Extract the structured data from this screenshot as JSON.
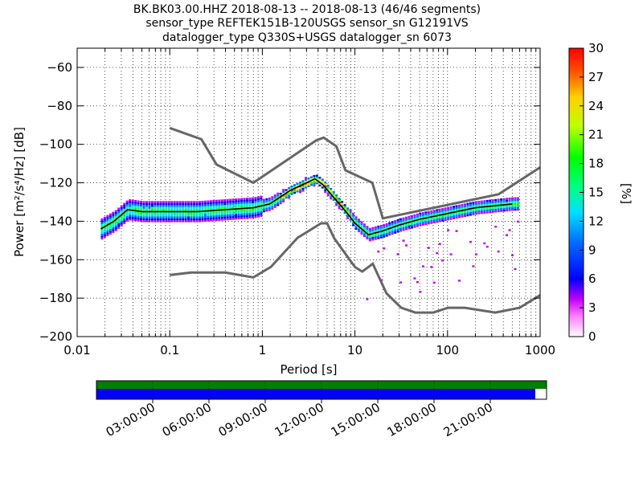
{
  "title": {
    "line1": "BK.BK03.00.HHZ   2018-08-13 -- 2018-08-13  (46/46 segments)",
    "line2": "sensor_type REFTEK151B-120USGS sensor_sn G12191VS",
    "line3": "datalogger_type Q330S+USGS datalogger_sn 6073"
  },
  "chart_data": {
    "type": "heatmap",
    "title": "BK.BK03.00.HHZ   2018-08-13 -- 2018-08-13  (46/46 segments)",
    "xlabel": "Period [s]",
    "ylabel": "Power [m²/s⁴/Hz] [dB]",
    "x_scale": "log",
    "xlim": [
      0.01,
      1000
    ],
    "ylim": [
      -200,
      -50
    ],
    "x_ticks": [
      0.01,
      0.1,
      1,
      10,
      100,
      1000
    ],
    "x_tick_labels": [
      "0.01",
      "0.1",
      "1",
      "10",
      "100",
      "1000"
    ],
    "y_ticks": [
      -200,
      -180,
      -160,
      -140,
      -120,
      -100,
      -80,
      -60
    ],
    "y_tick_labels": [
      "−200",
      "−180",
      "−160",
      "−140",
      "−120",
      "−100",
      "−80",
      "−60"
    ],
    "grid": true,
    "colorbar": {
      "label": "[%]",
      "min": 0,
      "max": 30,
      "ticks": [
        0,
        3,
        6,
        9,
        12,
        15,
        18,
        21,
        24,
        27,
        30
      ]
    },
    "noise_models": [
      {
        "name": "high",
        "x": [
          0.1,
          0.22,
          0.32,
          0.8,
          3.8,
          4.6,
          6.3,
          7.9,
          15.4,
          20,
          354.8,
          1000
        ],
        "y": [
          -91.5,
          -97.4,
          -110.5,
          -120,
          -98,
          -96.5,
          -101,
          -113.5,
          -120,
          -138.5,
          -126,
          -112
        ]
      },
      {
        "name": "low",
        "x": [
          0.1,
          0.17,
          0.4,
          0.8,
          1.24,
          2.4,
          4.3,
          5,
          6,
          10,
          12,
          15.6,
          21.9,
          31.6,
          45,
          70,
          101,
          154,
          328,
          600,
          1000
        ],
        "y": [
          -168,
          -166.7,
          -166.7,
          -169.2,
          -163.7,
          -148.6,
          -141.1,
          -141.1,
          -149,
          -163.8,
          -166.2,
          -162.1,
          -177.5,
          -185,
          -187.5,
          -187.5,
          -185,
          -185,
          -187.5,
          -185,
          -178.5
        ]
      }
    ],
    "mode_curve": {
      "x": [
        0.018,
        0.025,
        0.035,
        0.05,
        0.1,
        0.2,
        0.4,
        0.8,
        1.2,
        2,
        3,
        3.7,
        4.5,
        6,
        8,
        10,
        14,
        20,
        30,
        50,
        100,
        200,
        500
      ],
      "y": [
        -144,
        -140,
        -134,
        -135,
        -135,
        -135,
        -134,
        -133,
        -131,
        -124,
        -120,
        -118,
        -121,
        -128,
        -135,
        -141,
        -147,
        -145,
        -142,
        -139,
        -136,
        -133,
        -131
      ]
    },
    "time_axis": {
      "tick_labels": [
        "03:00:00",
        "06:00:00",
        "09:00:00",
        "12:00:00",
        "15:00:00",
        "18:00:00",
        "21:00:00"
      ],
      "available_fraction": 0.975,
      "colors": {
        "coverage": "#008000",
        "data": "#0000ff"
      }
    }
  }
}
